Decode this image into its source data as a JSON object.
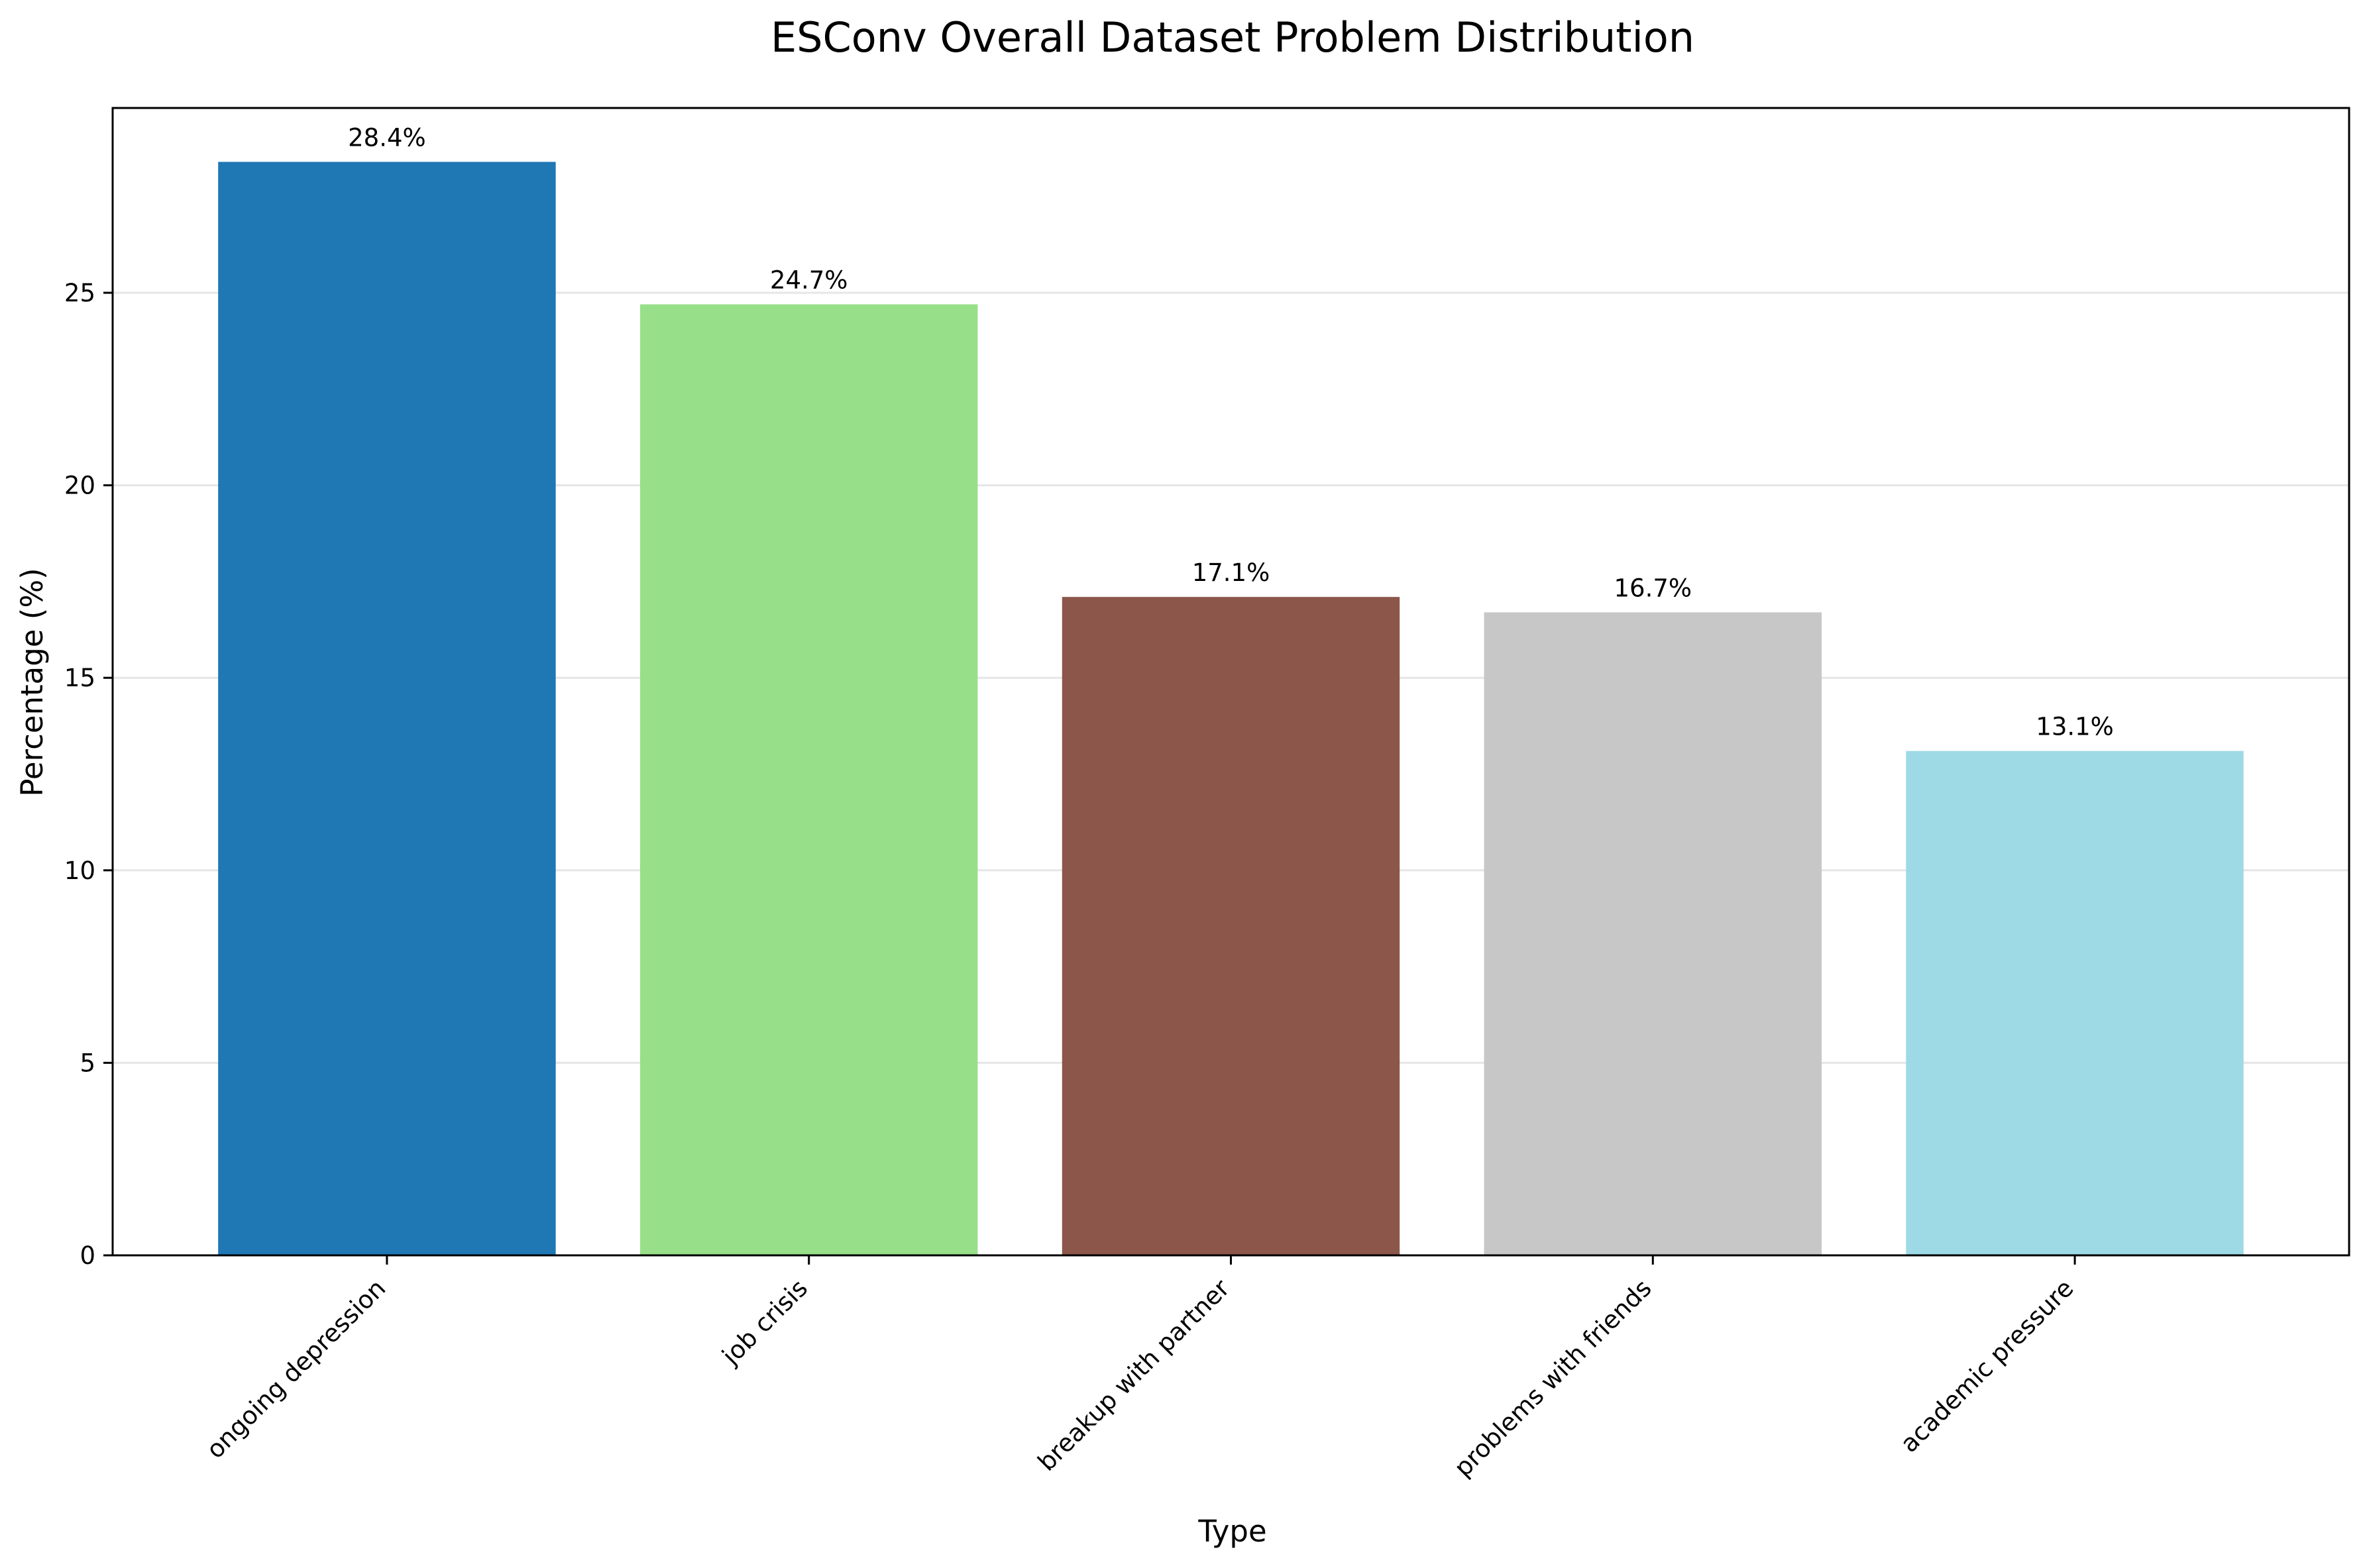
{
  "chart_data": {
    "type": "bar",
    "title": "ESConv Overall Dataset Problem Distribution",
    "xlabel": "Type",
    "ylabel": "Percentage (%)",
    "categories": [
      "ongoing depression",
      "job crisis",
      "breakup with partner",
      "problems with friends",
      "academic pressure"
    ],
    "values": [
      28.4,
      24.7,
      17.1,
      16.7,
      13.1
    ],
    "value_labels": [
      "28.4%",
      "24.7%",
      "17.1%",
      "16.7%",
      "13.1%"
    ],
    "colors": [
      "#1f77b4",
      "#98df8a",
      "#8c564b",
      "#c7c7c7",
      "#9edae5"
    ],
    "ylim": [
      0,
      29.8
    ],
    "yticks": [
      0,
      5,
      10,
      15,
      20,
      25
    ],
    "ytick_labels": [
      "0",
      "5",
      "10",
      "15",
      "20",
      "25"
    ],
    "grid": "horizontal",
    "legend": "none"
  }
}
